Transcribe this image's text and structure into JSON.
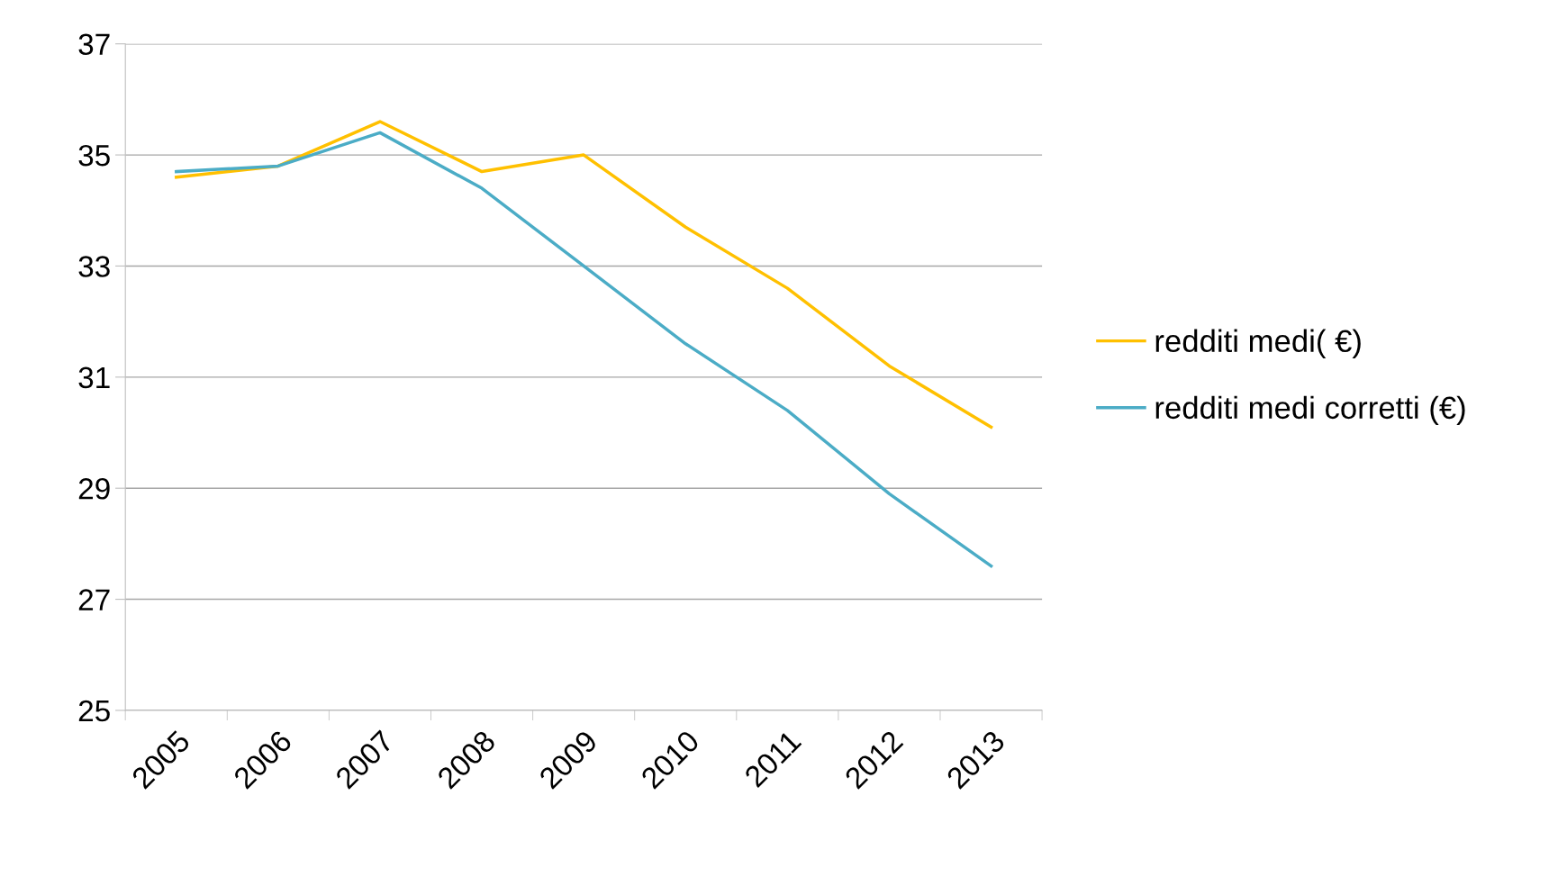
{
  "chart_data": {
    "type": "line",
    "categories": [
      "2005",
      "2006",
      "2007",
      "2008",
      "2009",
      "2010",
      "2011",
      "2012",
      "2013"
    ],
    "series": [
      {
        "name": "redditi medi( €)",
        "color": "#ffc000",
        "values": [
          34.6,
          34.8,
          35.6,
          34.7,
          35.0,
          33.7,
          32.6,
          31.2,
          30.1
        ]
      },
      {
        "name": "redditi medi corretti (€)",
        "color": "#4bacc6",
        "values": [
          34.7,
          34.8,
          35.4,
          34.4,
          33.0,
          31.6,
          30.4,
          28.9,
          27.6
        ]
      }
    ],
    "ylim": [
      25,
      37
    ],
    "yticks": [
      25,
      27,
      29,
      31,
      33,
      35,
      37
    ],
    "grid": "y",
    "legend": "right",
    "marker": "none",
    "line_style": "solid"
  }
}
